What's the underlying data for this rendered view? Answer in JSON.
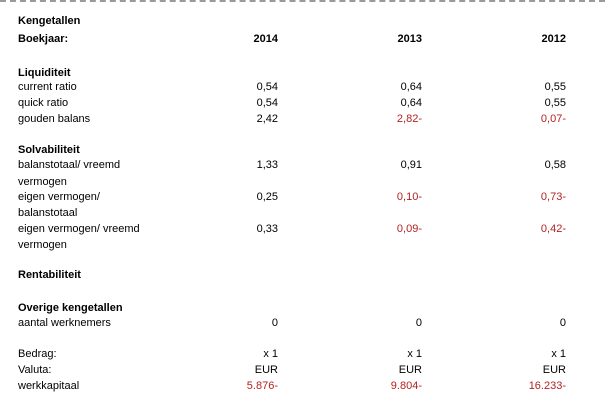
{
  "header": {
    "title": "Kengetallen",
    "boekjaar_label": "Boekjaar:",
    "years": [
      "2014",
      "2013",
      "2012"
    ]
  },
  "liquiditeit": {
    "heading": "Liquiditeit",
    "rows": [
      {
        "label": "current ratio",
        "values": [
          "0,54",
          "0,64",
          "0,55"
        ],
        "negative": [
          false,
          false,
          false
        ]
      },
      {
        "label": "quick ratio",
        "values": [
          "0,54",
          "0,64",
          "0,55"
        ],
        "negative": [
          false,
          false,
          false
        ]
      },
      {
        "label": "gouden balans",
        "values": [
          "2,42",
          "2,82-",
          "0,07-"
        ],
        "negative": [
          false,
          true,
          true
        ]
      }
    ]
  },
  "solvabiliteit": {
    "heading": "Solvabiliteit",
    "rows": [
      {
        "label_line1": "balanstotaal/ vreemd",
        "label_line2": "vermogen",
        "values": [
          "1,33",
          "0,91",
          "0,58"
        ],
        "negative": [
          false,
          false,
          false
        ]
      },
      {
        "label_line1": "eigen vermogen/",
        "label_line2": "balanstotaal",
        "values": [
          "0,25",
          "0,10-",
          "0,73-"
        ],
        "negative": [
          false,
          true,
          true
        ]
      },
      {
        "label_line1": "eigen vermogen/ vreemd",
        "label_line2": "vermogen",
        "values": [
          "0,33",
          "0,09-",
          "0,42-"
        ],
        "negative": [
          false,
          true,
          true
        ]
      }
    ]
  },
  "rentabiliteit": {
    "heading": "Rentabiliteit"
  },
  "overige": {
    "heading": "Overige kengetallen",
    "rows": [
      {
        "label": "aantal werknemers",
        "values": [
          "0",
          "0",
          "0"
        ],
        "negative": [
          false,
          false,
          false
        ]
      }
    ]
  },
  "footer": {
    "rows": [
      {
        "label": "Bedrag:",
        "values": [
          "x 1",
          "x 1",
          "x 1"
        ],
        "negative": [
          false,
          false,
          false
        ]
      },
      {
        "label": "Valuta:",
        "values": [
          "EUR",
          "EUR",
          "EUR"
        ],
        "negative": [
          false,
          false,
          false
        ]
      },
      {
        "label": "werkkapitaal",
        "values": [
          "5.876-",
          "9.804-",
          "16.233-"
        ],
        "negative": [
          true,
          true,
          true
        ]
      }
    ]
  },
  "colors": {
    "negative": "#b22222",
    "text": "#000000"
  }
}
